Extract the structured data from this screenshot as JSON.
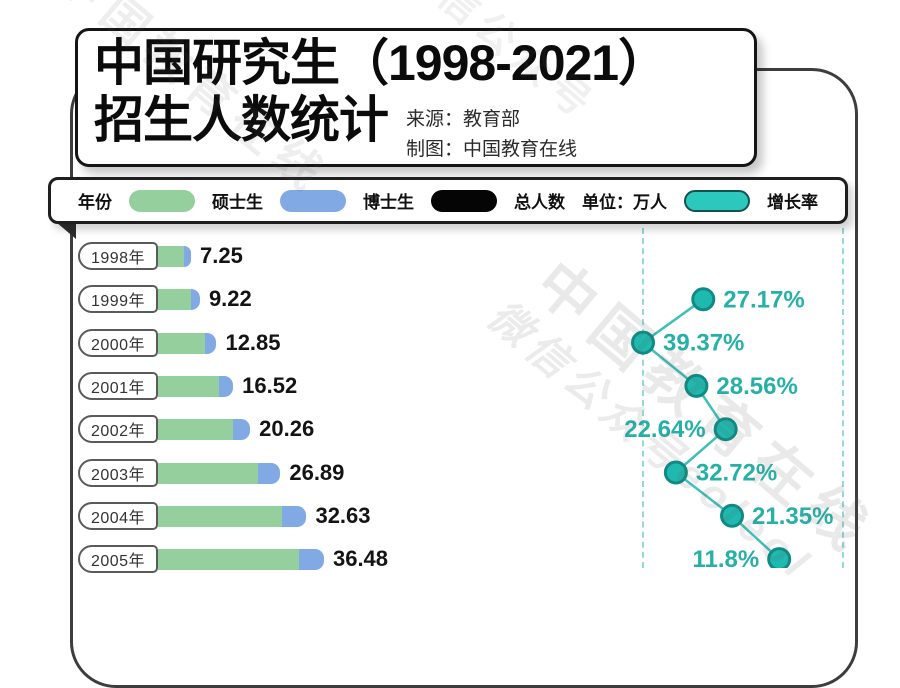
{
  "title": {
    "line1": "中国研究生（1998-2021）",
    "line2": "招生人数统计",
    "source": "来源：教育部",
    "credit": "制图：中国教育在线"
  },
  "legend": {
    "year_label": "年份",
    "masters_label": "硕士生",
    "phd_label": "博士生",
    "total_label": "总人数",
    "unit_label": "单位：万人",
    "growth_label": "增长率"
  },
  "watermarks": {
    "wm1": "中国教育在线",
    "wm2": "微信公众号eoleol",
    "wm3": "中国教育在线",
    "wm4": "微信公众号"
  },
  "colors": {
    "masters": "#95cf9e",
    "phd": "#81a9e3",
    "total": "#050505",
    "growth": "#1fb4ab",
    "growth_text": "#26b0a7",
    "dot_fill": "#1fb9af",
    "dot_stroke": "#0e8b84",
    "card_border": "#3d3d3d"
  },
  "chart_data": {
    "type": "bar",
    "title": "中国研究生（1998-2021）招生人数统计",
    "unit": "万人",
    "categories": [
      "1998年",
      "1999年",
      "2000年",
      "2001年",
      "2002年",
      "2003年",
      "2004年",
      "2005年"
    ],
    "totals": [
      7.25,
      9.22,
      12.85,
      16.52,
      20.26,
      26.89,
      32.63,
      36.48
    ],
    "total_labels": [
      "7.25",
      "9.22",
      "12.85",
      "16.52",
      "20.26",
      "26.89",
      "32.63",
      "36.48"
    ],
    "series": [
      {
        "name": "硕士生",
        "estimated_from_bar_proportions": true,
        "values": [
          5.7,
          7.22,
          10.3,
          13.5,
          16.4,
          22.0,
          27.3,
          31.0
        ]
      },
      {
        "name": "博士生",
        "estimated_from_bar_proportions": true,
        "values": [
          1.55,
          2.0,
          2.55,
          3.02,
          3.86,
          4.89,
          5.33,
          5.48
        ]
      }
    ],
    "growth_line": {
      "type": "line",
      "name": "增长率",
      "points": [
        {
          "year": "1999年",
          "pct": 27.17,
          "label": "27.17%",
          "label_side": "right"
        },
        {
          "year": "2000年",
          "pct": 39.37,
          "label": "39.37%",
          "label_side": "right"
        },
        {
          "year": "2001年",
          "pct": 28.56,
          "label": "28.56%",
          "label_side": "right"
        },
        {
          "year": "2002年",
          "pct": 22.64,
          "label": "22.64%",
          "label_side": "left"
        },
        {
          "year": "2003年",
          "pct": 32.72,
          "label": "32.72%",
          "label_side": "right"
        },
        {
          "year": "2004年",
          "pct": 21.35,
          "label": "21.35%",
          "label_side": "right"
        },
        {
          "year": "2005年",
          "pct": 11.8,
          "label": "11.8%",
          "label_side": "left"
        }
      ]
    },
    "layout_hints": {
      "years_shown": "1998-2005 (bottom row 2005 partially cut off)",
      "growth_axis": "horizontal position, higher % further left, between two dashed teal guides"
    }
  }
}
